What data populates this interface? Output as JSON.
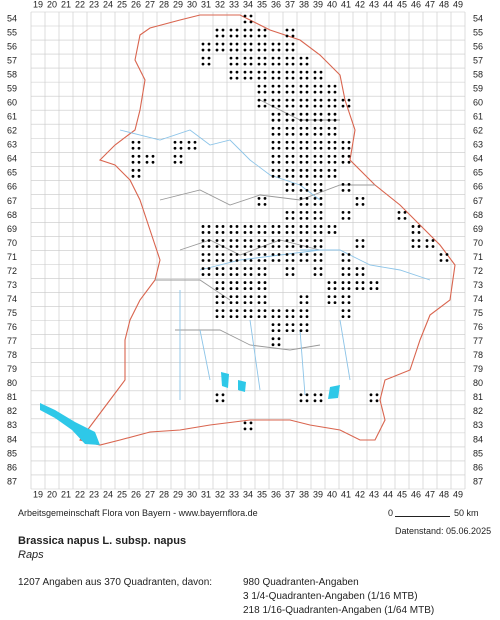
{
  "map": {
    "column_labels": [
      19,
      20,
      21,
      22,
      23,
      24,
      25,
      26,
      27,
      28,
      29,
      30,
      31,
      32,
      33,
      34,
      35,
      36,
      37,
      38,
      39,
      40,
      41,
      42,
      43,
      44,
      45,
      46,
      47,
      48,
      49
    ],
    "row_labels": [
      54,
      55,
      56,
      57,
      58,
      59,
      60,
      61,
      62,
      63,
      64,
      65,
      66,
      67,
      68,
      69,
      70,
      71,
      72,
      73,
      74,
      75,
      76,
      77,
      78,
      79,
      80,
      81,
      82,
      83,
      84,
      85,
      86,
      87
    ],
    "occupied_cells": [
      [
        34,
        54
      ],
      [
        32,
        55
      ],
      [
        33,
        55
      ],
      [
        34,
        55
      ],
      [
        35,
        55
      ],
      [
        37,
        55
      ],
      [
        31,
        56
      ],
      [
        32,
        56
      ],
      [
        33,
        56
      ],
      [
        34,
        56
      ],
      [
        35,
        56
      ],
      [
        36,
        56
      ],
      [
        37,
        56
      ],
      [
        31,
        57
      ],
      [
        33,
        57
      ],
      [
        34,
        57
      ],
      [
        35,
        57
      ],
      [
        36,
        57
      ],
      [
        37,
        57
      ],
      [
        38,
        57
      ],
      [
        33,
        58
      ],
      [
        34,
        58
      ],
      [
        35,
        58
      ],
      [
        36,
        58
      ],
      [
        37,
        58
      ],
      [
        38,
        58
      ],
      [
        39,
        58
      ],
      [
        35,
        59
      ],
      [
        36,
        59
      ],
      [
        37,
        59
      ],
      [
        38,
        59
      ],
      [
        39,
        59
      ],
      [
        40,
        59
      ],
      [
        35,
        60
      ],
      [
        36,
        60
      ],
      [
        37,
        60
      ],
      [
        38,
        60
      ],
      [
        39,
        60
      ],
      [
        40,
        60
      ],
      [
        41,
        60
      ],
      [
        36,
        61
      ],
      [
        37,
        61
      ],
      [
        38,
        61
      ],
      [
        39,
        61
      ],
      [
        40,
        61
      ],
      [
        36,
        62
      ],
      [
        37,
        62
      ],
      [
        38,
        62
      ],
      [
        39,
        62
      ],
      [
        40,
        62
      ],
      [
        26,
        63
      ],
      [
        29,
        63
      ],
      [
        30,
        63
      ],
      [
        36,
        63
      ],
      [
        37,
        63
      ],
      [
        38,
        63
      ],
      [
        39,
        63
      ],
      [
        40,
        63
      ],
      [
        41,
        63
      ],
      [
        26,
        64
      ],
      [
        27,
        64
      ],
      [
        29,
        64
      ],
      [
        36,
        64
      ],
      [
        37,
        64
      ],
      [
        38,
        64
      ],
      [
        39,
        64
      ],
      [
        40,
        64
      ],
      [
        41,
        64
      ],
      [
        26,
        65
      ],
      [
        36,
        65
      ],
      [
        37,
        65
      ],
      [
        38,
        65
      ],
      [
        39,
        65
      ],
      [
        40,
        65
      ],
      [
        37,
        66
      ],
      [
        38,
        66
      ],
      [
        39,
        66
      ],
      [
        41,
        66
      ],
      [
        35,
        67
      ],
      [
        38,
        67
      ],
      [
        39,
        67
      ],
      [
        42,
        67
      ],
      [
        37,
        68
      ],
      [
        38,
        68
      ],
      [
        39,
        68
      ],
      [
        41,
        68
      ],
      [
        45,
        68
      ],
      [
        31,
        69
      ],
      [
        32,
        69
      ],
      [
        33,
        69
      ],
      [
        34,
        69
      ],
      [
        35,
        69
      ],
      [
        36,
        69
      ],
      [
        37,
        69
      ],
      [
        38,
        69
      ],
      [
        39,
        69
      ],
      [
        40,
        69
      ],
      [
        46,
        69
      ],
      [
        31,
        70
      ],
      [
        32,
        70
      ],
      [
        33,
        70
      ],
      [
        34,
        70
      ],
      [
        35,
        70
      ],
      [
        36,
        70
      ],
      [
        37,
        70
      ],
      [
        38,
        70
      ],
      [
        39,
        70
      ],
      [
        42,
        70
      ],
      [
        46,
        70
      ],
      [
        47,
        70
      ],
      [
        31,
        71
      ],
      [
        32,
        71
      ],
      [
        33,
        71
      ],
      [
        34,
        71
      ],
      [
        35,
        71
      ],
      [
        36,
        71
      ],
      [
        37,
        71
      ],
      [
        38,
        71
      ],
      [
        39,
        71
      ],
      [
        41,
        71
      ],
      [
        48,
        71
      ],
      [
        31,
        72
      ],
      [
        32,
        72
      ],
      [
        33,
        72
      ],
      [
        34,
        72
      ],
      [
        35,
        72
      ],
      [
        37,
        72
      ],
      [
        39,
        72
      ],
      [
        41,
        72
      ],
      [
        42,
        72
      ],
      [
        32,
        73
      ],
      [
        33,
        73
      ],
      [
        34,
        73
      ],
      [
        35,
        73
      ],
      [
        40,
        73
      ],
      [
        41,
        73
      ],
      [
        42,
        73
      ],
      [
        43,
        73
      ],
      [
        32,
        74
      ],
      [
        33,
        74
      ],
      [
        34,
        74
      ],
      [
        35,
        74
      ],
      [
        38,
        74
      ],
      [
        40,
        74
      ],
      [
        41,
        74
      ],
      [
        32,
        75
      ],
      [
        33,
        75
      ],
      [
        34,
        75
      ],
      [
        35,
        75
      ],
      [
        36,
        75
      ],
      [
        37,
        75
      ],
      [
        38,
        75
      ],
      [
        41,
        75
      ],
      [
        36,
        76
      ],
      [
        37,
        76
      ],
      [
        38,
        76
      ],
      [
        36,
        77
      ],
      [
        32,
        81
      ],
      [
        38,
        81
      ],
      [
        39,
        81
      ],
      [
        43,
        81
      ],
      [
        34,
        83
      ]
    ]
  },
  "footer": {
    "credit": "Arbeitsgemeinschaft Flora von Bayern - www.bayernflora.de",
    "scale_start": "0",
    "scale_end": "50 km",
    "date": "Datenstand: 05.06.2025",
    "species": "Brassica napus L. subsp. napus",
    "common_name": "Raps",
    "summary": "1207 Angaben aus 370 Quadranten, davon:",
    "detail_1": "980 Quadranten-Angaben",
    "detail_2": "3 1/4-Quadranten-Angaben (1/16 MTB)",
    "detail_3": "218 1/16-Quadranten-Angaben (1/64 MTB)"
  }
}
